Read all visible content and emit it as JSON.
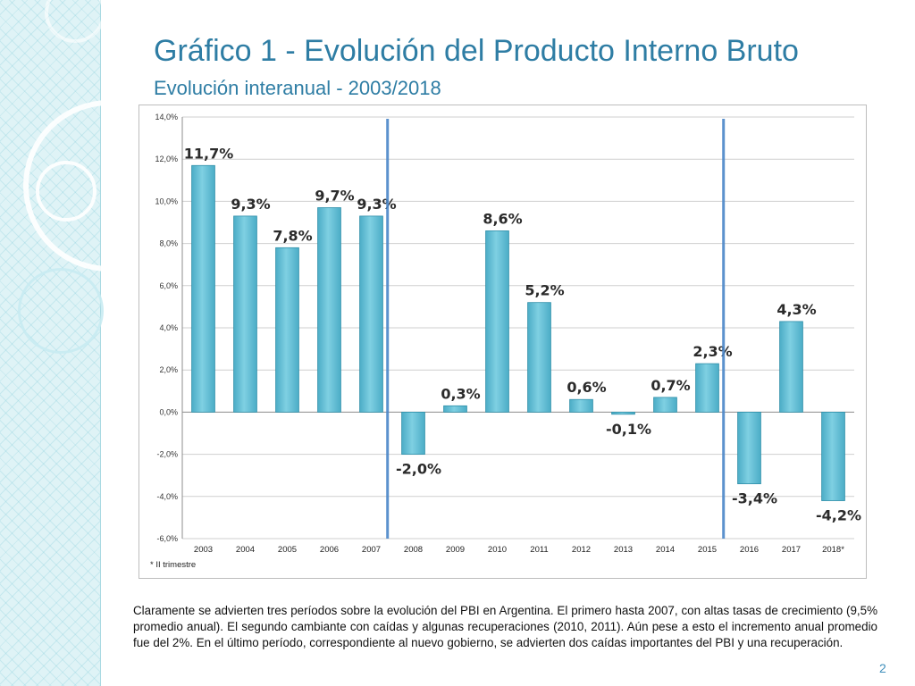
{
  "slide": {
    "title": "Gráfico 1 - Evolución del Producto Interno Bruto",
    "subtitle": "Evolución interanual - 2003/2018",
    "note": "Claramente se advierten tres períodos sobre la evolución del PBI en Argentina. El primero hasta 2007, con altas tasas de crecimiento (9,5% promedio anual). El segundo cambiante con caídas y algunas recuperaciones (2010, 2011). Aún pese a esto el incremento anual promedio fue del 2%. En el último período, correspondiente al nuevo gobierno, se advierten dos caídas importantes del  PBI y una recuperación.",
    "page_number": "2"
  },
  "colors": {
    "bar": "#4bacc6",
    "bar_light": "#7fd0e2",
    "divider": "#4a86c8",
    "title": "#2e7da4"
  },
  "chart_data": {
    "type": "bar",
    "title": "",
    "categories": [
      "2003",
      "2004",
      "2005",
      "2006",
      "2007",
      "2008",
      "2009",
      "2010",
      "2011",
      "2012",
      "2013",
      "2014",
      "2015",
      "2016",
      "2017",
      "2018*"
    ],
    "values": [
      11.7,
      9.3,
      7.8,
      9.7,
      9.3,
      -2.0,
      0.3,
      8.6,
      5.2,
      0.6,
      -0.1,
      0.7,
      2.3,
      -3.4,
      4.3,
      -4.2
    ],
    "data_labels": [
      "11,7%",
      "9,3%",
      "7,8%",
      "9,7%",
      "9,3%",
      "-2,0%",
      "0,3%",
      "8,6%",
      "5,2%",
      "0,6%",
      "-0,1%",
      "0,7%",
      "2,3%",
      "-3,4%",
      "4,3%",
      "-4,2%"
    ],
    "ylim": [
      -6,
      14
    ],
    "yticks": [
      -6,
      -4,
      -2,
      0,
      2,
      4,
      6,
      8,
      10,
      12,
      14
    ],
    "ytick_labels": [
      "-6,0%",
      "-4,0%",
      "-2,0%",
      "0,0%",
      "2,0%",
      "4,0%",
      "6,0%",
      "8,0%",
      "10,0%",
      "12,0%",
      "14,0%"
    ],
    "xlabel": "",
    "ylabel": "",
    "grid": true,
    "footnote": "* II trimestre",
    "period_dividers_after": [
      "2007",
      "2015"
    ]
  }
}
